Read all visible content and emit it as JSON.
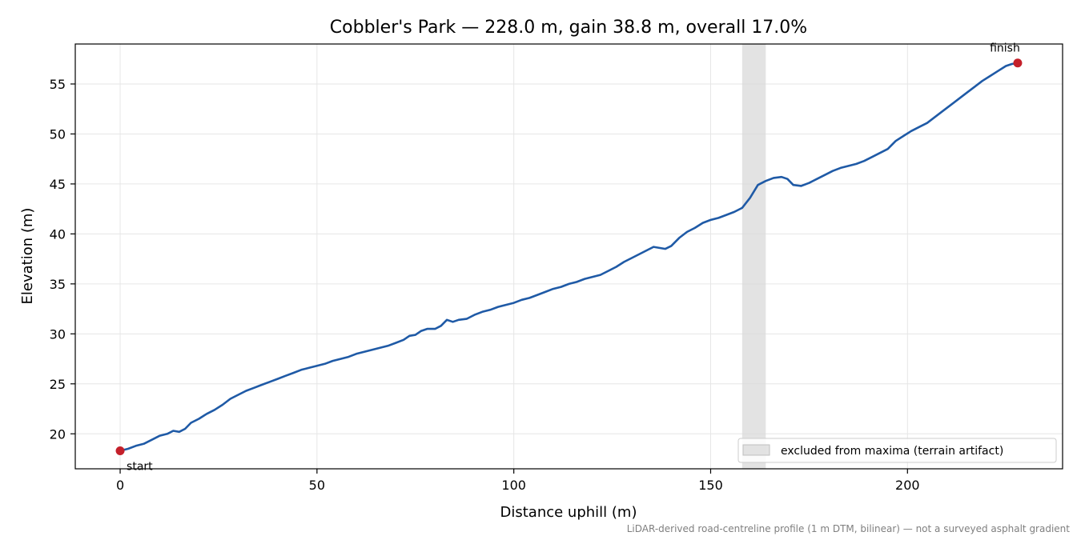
{
  "chart_data": {
    "type": "line",
    "title": "Cobbler's Park — 228.0 m, gain 38.8 m, overall 17.0%",
    "xlabel": "Distance uphill (m)",
    "ylabel": "Elevation (m)",
    "xlim": [
      -11.4,
      239.4
    ],
    "ylim": [
      16.5,
      59.0
    ],
    "x_ticks": [
      0,
      50,
      100,
      150,
      200
    ],
    "y_ticks": [
      20,
      25,
      30,
      35,
      40,
      45,
      50,
      55
    ],
    "grid": true,
    "series": [
      {
        "color": "#1f5aa6",
        "points": [
          [
            0,
            18.3
          ],
          [
            2,
            18.5
          ],
          [
            4,
            18.8
          ],
          [
            6,
            19.0
          ],
          [
            8,
            19.4
          ],
          [
            10,
            19.8
          ],
          [
            12,
            20.0
          ],
          [
            13.5,
            20.3
          ],
          [
            15,
            20.2
          ],
          [
            16.5,
            20.5
          ],
          [
            18,
            21.1
          ],
          [
            20,
            21.5
          ],
          [
            22,
            22.0
          ],
          [
            24,
            22.4
          ],
          [
            26,
            22.9
          ],
          [
            28,
            23.5
          ],
          [
            30,
            23.9
          ],
          [
            32,
            24.3
          ],
          [
            34,
            24.6
          ],
          [
            36,
            24.9
          ],
          [
            38,
            25.2
          ],
          [
            40,
            25.5
          ],
          [
            42,
            25.8
          ],
          [
            44,
            26.1
          ],
          [
            46,
            26.4
          ],
          [
            48,
            26.6
          ],
          [
            50,
            26.8
          ],
          [
            52,
            27.0
          ],
          [
            54,
            27.3
          ],
          [
            56,
            27.5
          ],
          [
            58,
            27.7
          ],
          [
            60,
            28.0
          ],
          [
            62,
            28.2
          ],
          [
            64,
            28.4
          ],
          [
            66,
            28.6
          ],
          [
            68,
            28.8
          ],
          [
            70,
            29.1
          ],
          [
            72,
            29.4
          ],
          [
            73.5,
            29.8
          ],
          [
            75,
            29.9
          ],
          [
            76.5,
            30.3
          ],
          [
            78,
            30.5
          ],
          [
            80,
            30.5
          ],
          [
            81.5,
            30.8
          ],
          [
            83,
            31.4
          ],
          [
            84.5,
            31.2
          ],
          [
            86,
            31.4
          ],
          [
            88,
            31.5
          ],
          [
            90,
            31.9
          ],
          [
            92,
            32.2
          ],
          [
            94,
            32.4
          ],
          [
            96,
            32.7
          ],
          [
            98,
            32.9
          ],
          [
            100,
            33.1
          ],
          [
            102,
            33.4
          ],
          [
            104,
            33.6
          ],
          [
            106,
            33.9
          ],
          [
            108,
            34.2
          ],
          [
            110,
            34.5
          ],
          [
            112,
            34.7
          ],
          [
            114,
            35.0
          ],
          [
            116,
            35.2
          ],
          [
            118,
            35.5
          ],
          [
            120,
            35.7
          ],
          [
            122,
            35.9
          ],
          [
            124,
            36.3
          ],
          [
            126,
            36.7
          ],
          [
            128,
            37.2
          ],
          [
            130,
            37.6
          ],
          [
            132,
            38.0
          ],
          [
            134,
            38.4
          ],
          [
            135.5,
            38.7
          ],
          [
            137,
            38.6
          ],
          [
            138.5,
            38.5
          ],
          [
            140,
            38.8
          ],
          [
            142,
            39.6
          ],
          [
            144,
            40.2
          ],
          [
            146,
            40.6
          ],
          [
            148,
            41.1
          ],
          [
            150,
            41.4
          ],
          [
            152,
            41.6
          ],
          [
            154,
            41.9
          ],
          [
            156,
            42.2
          ],
          [
            158,
            42.6
          ],
          [
            160,
            43.6
          ],
          [
            162,
            44.9
          ],
          [
            164,
            45.3
          ],
          [
            166,
            45.6
          ],
          [
            168,
            45.7
          ],
          [
            169.5,
            45.5
          ],
          [
            171,
            44.9
          ],
          [
            173,
            44.8
          ],
          [
            175,
            45.1
          ],
          [
            177,
            45.5
          ],
          [
            179,
            45.9
          ],
          [
            181,
            46.3
          ],
          [
            183,
            46.6
          ],
          [
            185,
            46.8
          ],
          [
            187,
            47.0
          ],
          [
            189,
            47.3
          ],
          [
            191,
            47.7
          ],
          [
            193,
            48.1
          ],
          [
            195,
            48.5
          ],
          [
            197,
            49.3
          ],
          [
            199,
            49.8
          ],
          [
            201,
            50.3
          ],
          [
            203,
            50.7
          ],
          [
            205,
            51.1
          ],
          [
            207,
            51.7
          ],
          [
            209,
            52.3
          ],
          [
            211,
            52.9
          ],
          [
            213,
            53.5
          ],
          [
            215,
            54.1
          ],
          [
            217,
            54.7
          ],
          [
            219,
            55.3
          ],
          [
            221,
            55.8
          ],
          [
            223,
            56.3
          ],
          [
            225,
            56.8
          ],
          [
            226.5,
            57.0
          ],
          [
            228,
            57.1
          ]
        ]
      }
    ],
    "markers": [
      {
        "label": "start",
        "x": 0,
        "y": 18.3,
        "color": "#c4202a"
      },
      {
        "label": "finish",
        "x": 228,
        "y": 57.1,
        "color": "#c4202a"
      }
    ],
    "excluded_band": {
      "x0": 158,
      "x1": 164,
      "color": "#d9d9d9"
    },
    "legend": {
      "label": "excluded from maxima (terrain artifact)",
      "placement": "lower-right"
    },
    "footnote": "LiDAR-derived road-centreline profile (1 m DTM, bilinear) — not a surveyed asphalt gradient"
  }
}
